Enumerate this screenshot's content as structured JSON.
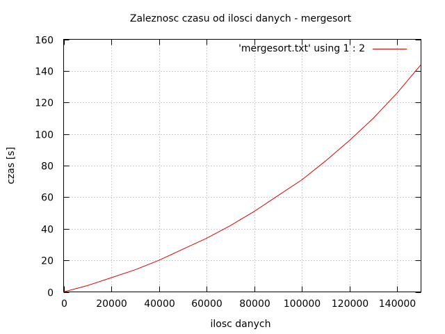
{
  "chart_data": {
    "type": "line",
    "title": "Zaleznosc czasu od ilosci danych - mergesort",
    "xlabel": "ilosc danych",
    "ylabel": "czas [s]",
    "xlim": [
      0,
      150000
    ],
    "ylim": [
      0,
      160
    ],
    "x_ticks": [
      0,
      20000,
      40000,
      60000,
      80000,
      100000,
      120000,
      140000
    ],
    "y_ticks": [
      0,
      20,
      40,
      60,
      80,
      100,
      120,
      140,
      160
    ],
    "grid": true,
    "legend_position": "top-right",
    "series": [
      {
        "name": "'mergesort.txt' using 1 : 2",
        "color": "#e00000",
        "x": [
          0,
          10000,
          20000,
          30000,
          40000,
          50000,
          60000,
          70000,
          80000,
          90000,
          100000,
          110000,
          120000,
          130000,
          140000,
          150000
        ],
        "y": [
          0,
          4,
          9,
          14,
          20,
          27,
          34,
          42,
          51,
          61,
          71,
          83,
          96,
          110,
          126,
          144
        ]
      }
    ]
  }
}
